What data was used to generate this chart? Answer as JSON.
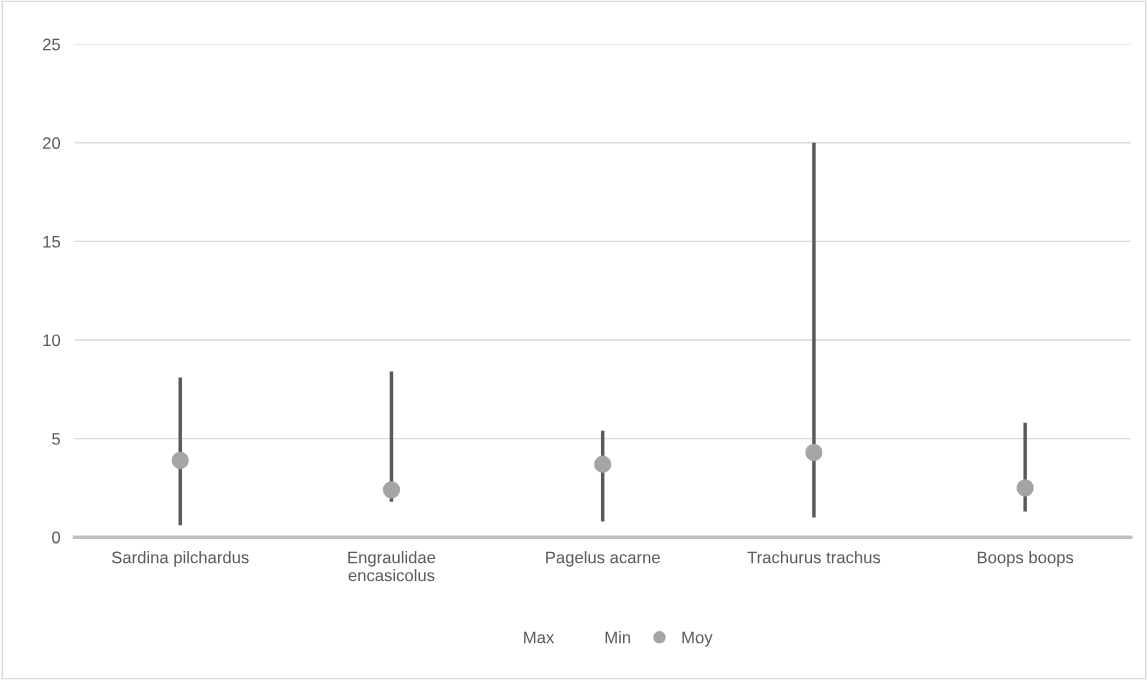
{
  "chart_data": {
    "type": "scatter",
    "categories": [
      "Sardina pilchardus",
      "Engraulidae\nencasicolus",
      "Pagelus acarne",
      "Trachurus trachus",
      "Boops boops"
    ],
    "series": [
      {
        "name": "Moy",
        "color": "#a5a5a5",
        "values": [
          3.9,
          2.4,
          3.7,
          4.3,
          2.5
        ],
        "errors": [
          [
            0.6,
            8.1
          ],
          [
            1.8,
            8.4
          ],
          [
            0.8,
            5.4
          ],
          [
            1.0,
            20
          ],
          [
            1.3,
            5.8
          ]
        ]
      }
    ],
    "annotations": [
      "Max",
      "Min"
    ],
    "marker": "circle",
    "ylim": [
      0,
      25
    ],
    "yticks": [
      0,
      5,
      10,
      15,
      20,
      25
    ],
    "grid": "y",
    "legend": "bottom"
  }
}
